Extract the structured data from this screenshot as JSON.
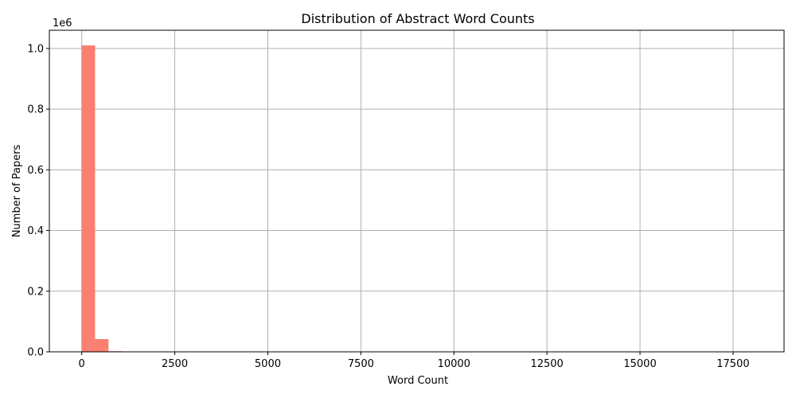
{
  "chart_data": {
    "type": "bar",
    "title": "Distribution of Abstract Word Counts",
    "xlabel": "Word Count",
    "ylabel": "Number of Papers",
    "y_offset_label": "1e6",
    "xlim": [
      -870,
      18870
    ],
    "ylim": [
      0,
      1060000
    ],
    "x_ticks": [
      0,
      2500,
      5000,
      7500,
      10000,
      12500,
      15000,
      17500
    ],
    "x_tick_labels": [
      "0",
      "2500",
      "5000",
      "7500",
      "10000",
      "12500",
      "15000",
      "17500"
    ],
    "y_ticks": [
      0,
      200000,
      400000,
      600000,
      800000,
      1000000
    ],
    "y_tick_labels": [
      "0.0",
      "0.2",
      "0.4",
      "0.6",
      "0.8",
      "1.0"
    ],
    "grid": true,
    "bar_color": "#fa8072",
    "bins": [
      {
        "x0": 0,
        "x1": 360,
        "value": 1010000
      },
      {
        "x0": 360,
        "x1": 720,
        "value": 42000
      },
      {
        "x0": 720,
        "x1": 1080,
        "value": 2000
      },
      {
        "x0": 1080,
        "x1": 1440,
        "value": 300
      }
    ]
  }
}
